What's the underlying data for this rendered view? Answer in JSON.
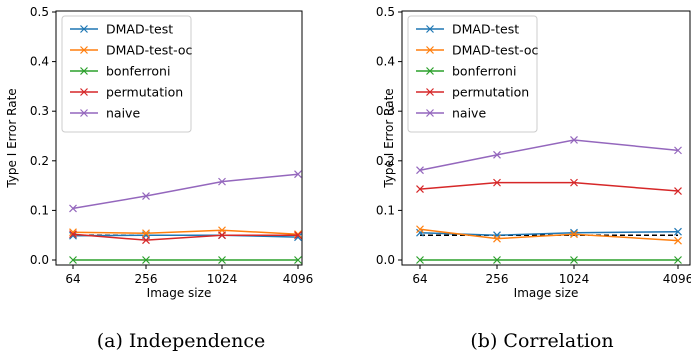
{
  "chart_data": [
    {
      "type": "line",
      "caption": "(a) Independence",
      "xlabel": "Image size",
      "ylabel": "Type I Error Rate",
      "categories": [
        "64",
        "256",
        "1024",
        "4096"
      ],
      "ylim": [
        0,
        0.5
      ],
      "yticks": [
        "0.0",
        "0.1",
        "0.2",
        "0.3",
        "0.4",
        "0.5"
      ],
      "reference_line": 0.05,
      "legend_position": "top-left",
      "series": [
        {
          "name": "DMAD-test",
          "color": "#1f77b4",
          "values": [
            0.049,
            0.05,
            0.05,
            0.046
          ]
        },
        {
          "name": "DMAD-test-oc",
          "color": "#ff7f0e",
          "values": [
            0.056,
            0.054,
            0.06,
            0.052
          ]
        },
        {
          "name": "bonferroni",
          "color": "#2ca02c",
          "values": [
            0.0,
            0.0,
            0.0,
            0.0
          ]
        },
        {
          "name": "permutation",
          "color": "#d62728",
          "values": [
            0.052,
            0.04,
            0.05,
            0.05
          ]
        },
        {
          "name": "naive",
          "color": "#9467bd",
          "values": [
            0.104,
            0.129,
            0.158,
            0.173
          ]
        }
      ]
    },
    {
      "type": "line",
      "caption": "(b) Correlation",
      "xlabel": "Image size",
      "ylabel": "Type I Error Rate",
      "categories": [
        "64",
        "256",
        "1024",
        "4096"
      ],
      "ylim": [
        0,
        0.5
      ],
      "yticks": [
        "0.0",
        "0.1",
        "0.2",
        "0.3",
        "0.4",
        "0.5"
      ],
      "reference_line": 0.05,
      "legend_position": "top-left",
      "series": [
        {
          "name": "DMAD-test",
          "color": "#1f77b4",
          "values": [
            0.055,
            0.05,
            0.055,
            0.057
          ]
        },
        {
          "name": "DMAD-test-oc",
          "color": "#ff7f0e",
          "values": [
            0.062,
            0.043,
            0.052,
            0.039
          ]
        },
        {
          "name": "bonferroni",
          "color": "#2ca02c",
          "values": [
            0.0,
            0.0,
            0.0,
            0.0
          ]
        },
        {
          "name": "permutation",
          "color": "#d62728",
          "values": [
            0.143,
            0.156,
            0.156,
            0.139
          ]
        },
        {
          "name": "naive",
          "color": "#9467bd",
          "values": [
            0.181,
            0.212,
            0.242,
            0.221
          ]
        }
      ]
    }
  ]
}
